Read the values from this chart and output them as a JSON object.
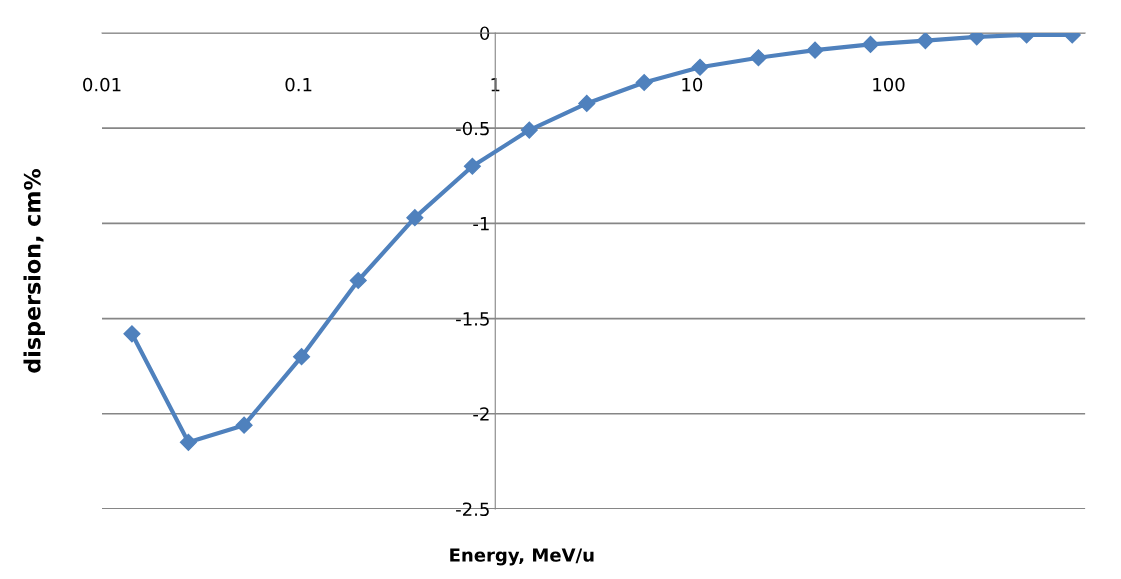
{
  "chart_data": {
    "type": "line",
    "xlabel": "Energy, MeV/u",
    "ylabel": "dispersion, cm%",
    "log": "x",
    "grid": "y",
    "marker": "diamond",
    "line_style": "solid",
    "legend": false,
    "xlim": [
      0.01,
      1000
    ],
    "xticks": [
      0.01,
      0.1,
      1,
      10,
      100
    ],
    "ylim": [
      -2.5,
      0
    ],
    "yticks": [
      -2.5,
      -2,
      -1.5,
      -1,
      -0.5,
      0
    ],
    "series": [
      {
        "color": "#4f81bd",
        "x": [
          0.0142,
          0.0275,
          0.0528,
          0.1035,
          0.201,
          0.39,
          0.765,
          1.49,
          2.92,
          5.72,
          11.0,
          21.8,
          42.3,
          81,
          154,
          281,
          504,
          860
        ],
        "values": [
          -1.58,
          -2.15,
          -2.06,
          -1.7,
          -1.3,
          -0.97,
          -0.7,
          -0.51,
          -0.37,
          -0.26,
          -0.18,
          -0.13,
          -0.09,
          -0.06,
          -0.04,
          -0.02,
          -0.01,
          -0.01
        ]
      }
    ]
  }
}
